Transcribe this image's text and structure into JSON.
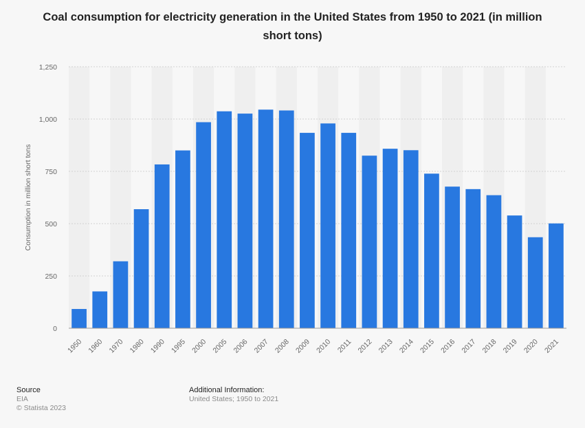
{
  "title": "Coal consumption for electricity generation in the United States from 1950 to 2021 (in million short tons)",
  "footer": {
    "source_label": "Source",
    "source_value": "EIA",
    "copyright": "© Statista 2023",
    "additional_label": "Additional Information:",
    "additional_value": "United States; 1950 to 2021"
  },
  "colors": {
    "bar": "#2878e0",
    "grid": "#d0d0d0",
    "band": "#efefef",
    "tick": "#666666"
  },
  "chart_data": {
    "type": "bar",
    "title": "Coal consumption for electricity generation in the United States from 1950 to 2021 (in million short tons)",
    "ylabel": "Consumption in million short tons",
    "xlabel": "",
    "ylim": [
      0,
      1250
    ],
    "yticks": [
      0,
      250,
      500,
      750,
      1000,
      1250
    ],
    "ytick_labels": [
      "0",
      "250",
      "500",
      "750",
      "1,000",
      "1,250"
    ],
    "grid": true,
    "legend": "none",
    "categories": [
      "1950",
      "1960",
      "1970",
      "1980",
      "1990",
      "1995",
      "2000",
      "2005",
      "2006",
      "2007",
      "2008",
      "2009",
      "2010",
      "2011",
      "2012",
      "2013",
      "2014",
      "2015",
      "2016",
      "2017",
      "2018",
      "2019",
      "2020",
      "2021"
    ],
    "values": [
      92,
      176,
      320,
      569,
      783,
      850,
      985,
      1037,
      1026,
      1045,
      1041,
      934,
      979,
      934,
      825,
      858,
      851,
      739,
      677,
      665,
      636,
      539,
      435,
      501
    ]
  }
}
